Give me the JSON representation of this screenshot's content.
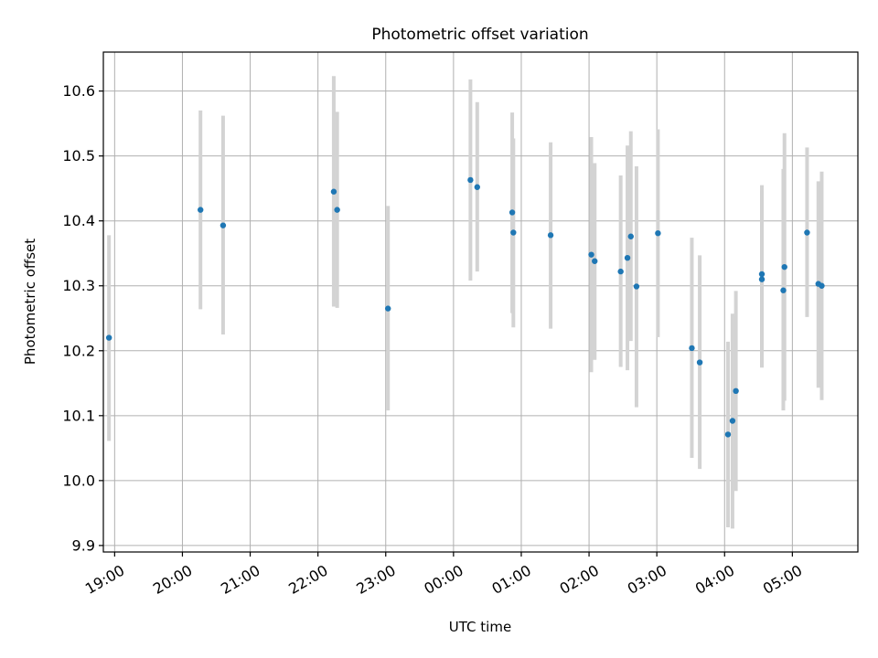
{
  "chart_data": {
    "type": "scatter",
    "title": "Photometric offset variation",
    "xlabel": "UTC time",
    "ylabel": "Photometric offset",
    "grid": true,
    "x_unit": "UTC time (HH:MM, night spanning 18:50 to 05:35)",
    "x_ticks": [
      "19:00",
      "20:00",
      "21:00",
      "22:00",
      "23:00",
      "00:00",
      "01:00",
      "02:00",
      "03:00",
      "04:00",
      "05:00"
    ],
    "y_ticks": [
      "9.9",
      "10.0",
      "10.1",
      "10.2",
      "10.3",
      "10.4",
      "10.5",
      "10.6"
    ],
    "ylim": [
      9.89,
      10.66
    ],
    "xlim": [
      "18:50",
      "05:58"
    ],
    "colors": {
      "point": "#1f77b4",
      "errorbar": "#d3d3d3",
      "grid": "#b0b0b0"
    },
    "points": [
      {
        "x": "18:55",
        "y": 10.22,
        "ylow": 10.061,
        "yhigh": 10.378
      },
      {
        "x": "20:16",
        "y": 10.417,
        "ylow": 10.264,
        "yhigh": 10.57
      },
      {
        "x": "20:36",
        "y": 10.393,
        "ylow": 10.225,
        "yhigh": 10.562
      },
      {
        "x": "22:14",
        "y": 10.445,
        "ylow": 10.268,
        "yhigh": 10.623
      },
      {
        "x": "22:17",
        "y": 10.417,
        "ylow": 10.266,
        "yhigh": 10.568
      },
      {
        "x": "23:02",
        "y": 10.265,
        "ylow": 10.108,
        "yhigh": 10.423
      },
      {
        "x": "00:15",
        "y": 10.463,
        "ylow": 10.308,
        "yhigh": 10.618
      },
      {
        "x": "00:21",
        "y": 10.452,
        "ylow": 10.322,
        "yhigh": 10.583
      },
      {
        "x": "00:52",
        "y": 10.413,
        "ylow": 10.258,
        "yhigh": 10.567
      },
      {
        "x": "00:53",
        "y": 10.382,
        "ylow": 10.236,
        "yhigh": 10.527
      },
      {
        "x": "01:26",
        "y": 10.378,
        "ylow": 10.234,
        "yhigh": 10.521
      },
      {
        "x": "02:02",
        "y": 10.348,
        "ylow": 10.167,
        "yhigh": 10.529
      },
      {
        "x": "02:05",
        "y": 10.338,
        "ylow": 10.186,
        "yhigh": 10.489
      },
      {
        "x": "02:28",
        "y": 10.322,
        "ylow": 10.175,
        "yhigh": 10.47
      },
      {
        "x": "02:34",
        "y": 10.343,
        "ylow": 10.17,
        "yhigh": 10.516
      },
      {
        "x": "02:37",
        "y": 10.376,
        "ylow": 10.215,
        "yhigh": 10.538
      },
      {
        "x": "02:42",
        "y": 10.299,
        "ylow": 10.113,
        "yhigh": 10.484
      },
      {
        "x": "03:01",
        "y": 10.381,
        "ylow": 10.221,
        "yhigh": 10.541
      },
      {
        "x": "03:31",
        "y": 10.204,
        "ylow": 10.035,
        "yhigh": 10.374
      },
      {
        "x": "03:38",
        "y": 10.182,
        "ylow": 10.018,
        "yhigh": 10.347
      },
      {
        "x": "04:03",
        "y": 10.071,
        "ylow": 9.928,
        "yhigh": 10.214
      },
      {
        "x": "04:07",
        "y": 10.092,
        "ylow": 9.926,
        "yhigh": 10.257
      },
      {
        "x": "04:10",
        "y": 10.138,
        "ylow": 9.984,
        "yhigh": 10.292
      },
      {
        "x": "04:33",
        "y": 10.318,
        "ylow": 10.174,
        "yhigh": 10.455
      },
      {
        "x": "04:33",
        "y": 10.31,
        "ylow": 10.175,
        "yhigh": 10.447
      },
      {
        "x": "04:52",
        "y": 10.293,
        "ylow": 10.108,
        "yhigh": 10.48
      },
      {
        "x": "04:53",
        "y": 10.329,
        "ylow": 10.123,
        "yhigh": 10.535
      },
      {
        "x": "05:13",
        "y": 10.382,
        "ylow": 10.252,
        "yhigh": 10.513
      },
      {
        "x": "05:23",
        "y": 10.303,
        "ylow": 10.143,
        "yhigh": 10.461
      },
      {
        "x": "05:26",
        "y": 10.3,
        "ylow": 10.124,
        "yhigh": 10.476
      }
    ]
  }
}
